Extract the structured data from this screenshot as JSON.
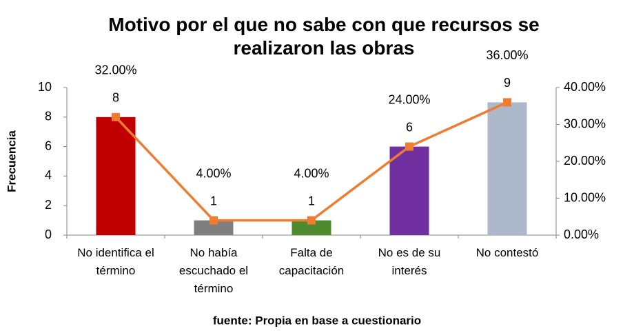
{
  "chart_data": {
    "type": "bar",
    "title": "Motivo por el que no sabe con que recursos se realizaron las obras",
    "y_label": "Frecuencia",
    "caption": "fuente: Propia en base a cuestionario",
    "categories": [
      "No identifica el término",
      "No había escuchado el término",
      "Falta de capacitación",
      "No es de su interés",
      "No contestó"
    ],
    "series": [
      {
        "type": "bar",
        "colors": [
          "#c00000",
          "#7f7f7f",
          "#4e8a2e",
          "#7030a0",
          "#adb9ca"
        ],
        "values": [
          8,
          1,
          1,
          6,
          9
        ]
      },
      {
        "type": "line",
        "axis": "y2",
        "color": "#ed7d31",
        "values": [
          32,
          4,
          4,
          24,
          36
        ],
        "value_labels": [
          "32.00%",
          "4.00%",
          "4.00%",
          "24.00%",
          "36.00%"
        ]
      }
    ],
    "ylim": [
      0,
      10
    ],
    "yticks": [
      0,
      2,
      4,
      6,
      8,
      10
    ],
    "y2lim": [
      0,
      40
    ],
    "y2ticks": [
      {
        "value": 0,
        "label": "0.00%"
      },
      {
        "value": 10,
        "label": "10.00%"
      },
      {
        "value": 20,
        "label": "20.00%"
      },
      {
        "value": 30,
        "label": "30.00%"
      },
      {
        "value": 40,
        "label": "40.00%"
      }
    ]
  }
}
